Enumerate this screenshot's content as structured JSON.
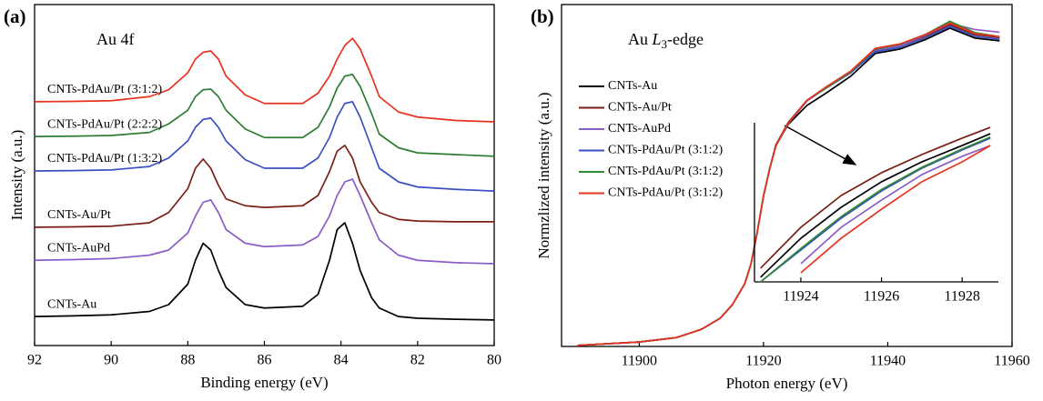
{
  "chart_data": [
    {
      "type": "line",
      "panel_label": "(a)",
      "annotation": "Au 4f",
      "xlabel": "Binding energy (eV)",
      "ylabel": "Intensity (a.u.)",
      "legend": "inline",
      "xlim": [
        92,
        80
      ],
      "xticks": [
        92,
        90,
        88,
        86,
        84,
        82,
        80
      ],
      "ylim": [
        0,
        100
      ],
      "x": [
        92,
        91,
        90,
        89,
        88.5,
        88,
        87.8,
        87.6,
        87.4,
        87.2,
        87,
        86.5,
        86,
        85,
        84.6,
        84.3,
        84.1,
        83.9,
        83.7,
        83.5,
        83.2,
        83,
        82.5,
        82,
        81,
        80
      ],
      "series": [
        {
          "name": "CNTs-PdAu/Pt (3:1:2)",
          "color": "#e8321e",
          "values": [
            71.5,
            71.6,
            71.8,
            73,
            75,
            80,
            84,
            86,
            86.4,
            84,
            79,
            73.5,
            71,
            71,
            74,
            79,
            84,
            88,
            90.1,
            87,
            79,
            73,
            68.5,
            67,
            66,
            65.6
          ]
        },
        {
          "name": "CNTs-PdAu/Pt (2:2:2)",
          "color": "#2f7d32",
          "values": [
            61.3,
            61.4,
            61.6,
            62.5,
            65,
            69,
            73,
            75,
            75.2,
            73,
            69,
            63.5,
            61,
            61,
            64,
            70,
            75.5,
            79,
            79.5,
            76,
            68,
            62,
            58,
            56.5,
            56,
            55.5
          ]
        },
        {
          "name": "CNTs-PdAu/Pt (1:3:2)",
          "color": "#3a4fc0",
          "values": [
            51.2,
            51.3,
            51.5,
            52.5,
            55,
            60,
            64,
            66.3,
            66.7,
            64,
            60,
            54.5,
            52,
            52,
            55,
            61,
            67,
            71,
            71.5,
            67,
            58,
            52,
            48,
            46.5,
            45.8,
            45.3
          ]
        },
        {
          "name": "CNTs-Au/Pt",
          "color": "#7a1e14",
          "values": [
            34.7,
            34.8,
            35,
            36,
            39,
            46,
            52,
            54.7,
            52,
            47,
            43,
            41,
            40.5,
            41,
            44,
            51,
            57,
            58.7,
            55,
            48,
            42,
            39,
            37,
            36.5,
            36.3,
            36.3
          ]
        },
        {
          "name": "CNTs-AuPd",
          "color": "#8a5cc8",
          "values": [
            25,
            25.2,
            25.5,
            26.5,
            28,
            33,
            38,
            42,
            42.7,
            39,
            34,
            30,
            29,
            29.5,
            32,
            38,
            44,
            48,
            48.8,
            44,
            36,
            31,
            26.5,
            25,
            24.3,
            24
          ]
        },
        {
          "name": "CNTs-Au",
          "color": "#000000",
          "values": [
            8.5,
            8.7,
            9,
            10,
            12,
            18,
            25,
            30,
            28,
            22,
            17,
            12,
            11,
            11.5,
            15,
            25,
            34,
            36,
            30,
            22,
            14,
            11,
            8.5,
            8,
            7.7,
            7.5
          ]
        }
      ]
    },
    {
      "type": "line",
      "panel_label": "(b)",
      "annotation": [
        "Au",
        "L",
        "3",
        "-edge"
      ],
      "xlabel": "Photon energy (eV)",
      "ylabel": "Normzlized intensity (a.u.)",
      "legend": "upper left",
      "xlim": [
        11887.5,
        11960
      ],
      "xticks": [
        11900,
        11920,
        11940,
        11960
      ],
      "ylim": [
        0,
        100
      ],
      "x": [
        11890,
        11900,
        11906,
        11910,
        11913,
        11915,
        11917,
        11918,
        11919,
        11920,
        11921,
        11922,
        11924,
        11927,
        11930,
        11934,
        11938,
        11942,
        11946,
        11950,
        11954,
        11958
      ],
      "series": [
        {
          "name": "CNTs-Au",
          "color": "#000000",
          "values": [
            0.3,
            1.3,
            2.6,
            5,
            8.2,
            12.2,
            18.4,
            24.2,
            33.5,
            44,
            52,
            58.8,
            65,
            70.5,
            74,
            79,
            85.7,
            87,
            89.7,
            93.1,
            90.2,
            89.4
          ]
        },
        {
          "name": "CNTs-Au/Pt",
          "color": "#7a1e14",
          "values": [
            0.3,
            1.3,
            2.6,
            5,
            8.2,
            12.2,
            18.4,
            24.2,
            33.5,
            44,
            52,
            59,
            65.6,
            72,
            75.5,
            80,
            86.7,
            88,
            90.7,
            94.1,
            91.2,
            90.4
          ]
        },
        {
          "name": "CNTs-AuPd",
          "color": "#8a5cc8",
          "values": [
            0.3,
            1.3,
            2.6,
            5,
            8.2,
            12.2,
            18.4,
            24.2,
            33.5,
            44,
            52,
            58.6,
            65.2,
            71.8,
            75.5,
            80,
            86.5,
            88,
            91,
            94.5,
            92.7,
            91.9
          ]
        },
        {
          "name": "CNTs-PdAu/Pt (3:1:2)",
          "color": "#3a4fc0",
          "values": [
            0.3,
            1.3,
            2.6,
            5,
            8.2,
            12.2,
            18.4,
            24.2,
            33.5,
            44,
            52,
            58.8,
            65.4,
            72,
            75.5,
            80,
            86.2,
            87.5,
            90.2,
            93.6,
            90.7,
            89.9
          ]
        },
        {
          "name": "CNTs-PdAu/Pt (3:1:2)",
          "color": "#2f8a2f",
          "values": [
            0.3,
            1.3,
            2.6,
            5,
            8.2,
            12.2,
            18.4,
            24.2,
            33.5,
            44,
            52,
            58.8,
            65.4,
            72,
            75.5,
            80.3,
            87,
            88.4,
            91.2,
            95.1,
            91.8,
            90.6
          ]
        },
        {
          "name": "CNTs-PdAu/Pt (3:1:2)",
          "color": "#e8321e",
          "values": [
            0.3,
            1.3,
            2.6,
            5,
            8.2,
            12.2,
            18.4,
            24.2,
            33.5,
            44,
            52,
            58.8,
            65.4,
            72,
            75.8,
            80.5,
            87.2,
            88.5,
            91.2,
            94.6,
            91.5,
            90.6
          ]
        }
      ]
    },
    {
      "type": "line",
      "xlim": [
        11922.85,
        11928.9
      ],
      "xticks": [
        11924,
        11926,
        11928
      ],
      "ylim": [
        0,
        100
      ],
      "x": [
        11923,
        11924,
        11925,
        11926,
        11927,
        11928,
        11928.7
      ],
      "series": [
        {
          "color": "#7a1e14",
          "values": [
            8.6,
            34.3,
            54.3,
            68.6,
            80,
            90.3,
            97.1
          ]
        },
        {
          "color": "#000000",
          "values": [
            2.9,
            27.4,
            46.9,
            62.9,
            75.4,
            85.7,
            93.1
          ]
        },
        {
          "color": "#3a4fc0",
          "values": [
            0,
            20,
            40,
            57.1,
            71.4,
            82.9,
            90.3
          ]
        },
        {
          "color": "#2f8a2f",
          "values": [
            0,
            21,
            41,
            58,
            72,
            83.5,
            91
          ]
        },
        {
          "color": "#8a5cc8",
          "values": [
            null,
            11.4,
            34.3,
            51.4,
            67.4,
            78.9,
            85.7
          ]
        },
        {
          "color": "#e8321e",
          "values": [
            null,
            5.7,
            27.4,
            45.7,
            62.9,
            75.4,
            85.7
          ]
        }
      ]
    }
  ]
}
